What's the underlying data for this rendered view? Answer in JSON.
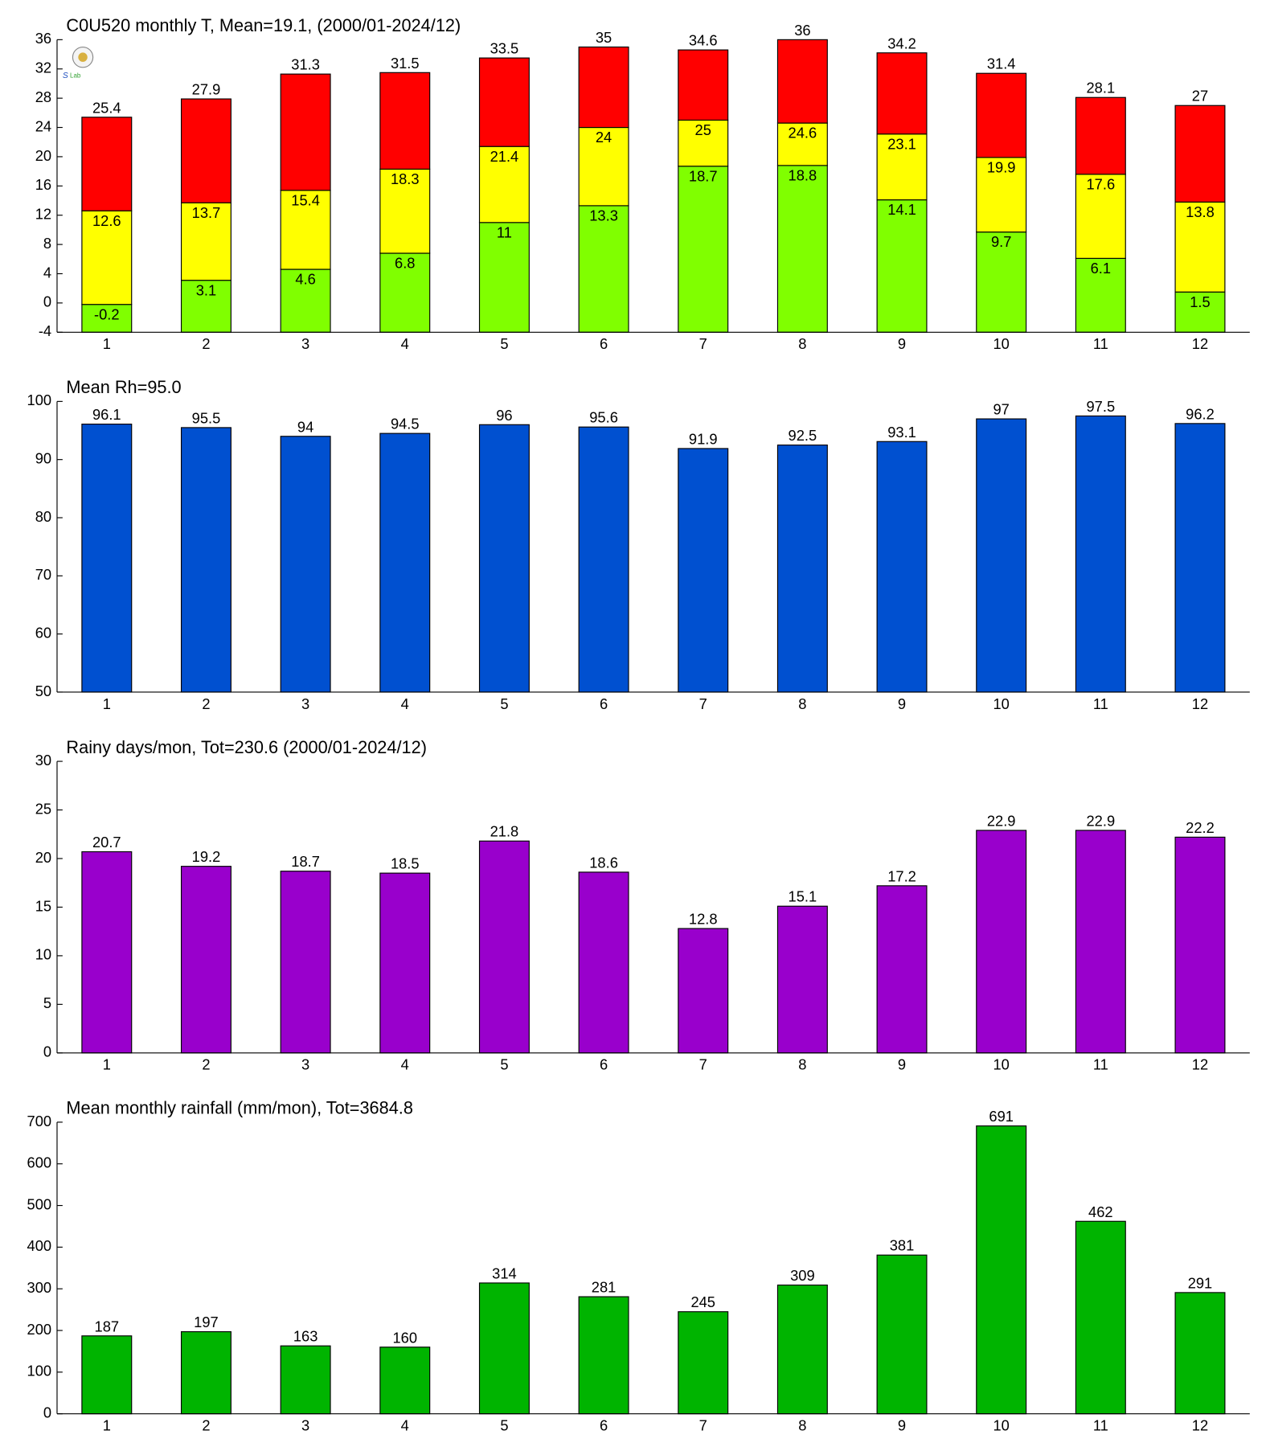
{
  "chart_data": [
    {
      "type": "floating_bar",
      "title": "C0U520 monthly T, Mean=19.1, (2000/01-2024/12)",
      "categories": [
        "1",
        "2",
        "3",
        "4",
        "5",
        "6",
        "7",
        "8",
        "9",
        "10",
        "11",
        "12"
      ],
      "series": [
        {
          "color": "#80ff00",
          "values": [
            -0.2,
            3.1,
            4.6,
            6.8,
            11,
            13.3,
            18.7,
            18.8,
            14.1,
            9.7,
            6.1,
            1.5
          ]
        },
        {
          "color": "#ffff00",
          "values": [
            12.6,
            13.7,
            15.4,
            18.3,
            21.4,
            24,
            25,
            24.6,
            23.1,
            19.9,
            17.6,
            13.8
          ]
        },
        {
          "color": "#ff0000",
          "values": [
            25.4,
            27.9,
            31.3,
            31.5,
            33.5,
            35,
            34.6,
            36,
            34.2,
            31.4,
            28.1,
            27
          ]
        }
      ],
      "ylim": [
        -4,
        36
      ],
      "yticks": [
        -4,
        0,
        4,
        8,
        12,
        16,
        20,
        24,
        28,
        32,
        36
      ]
    },
    {
      "type": "bar",
      "title": "Mean Rh=95.0",
      "categories": [
        "1",
        "2",
        "3",
        "4",
        "5",
        "6",
        "7",
        "8",
        "9",
        "10",
        "11",
        "12"
      ],
      "values": [
        96.1,
        95.5,
        94,
        94.5,
        96,
        95.6,
        91.9,
        92.5,
        93.1,
        97,
        97.5,
        96.2
      ],
      "color": "#0050d0",
      "ylim": [
        50,
        100
      ],
      "yticks": [
        50,
        60,
        70,
        80,
        90,
        100
      ]
    },
    {
      "type": "bar",
      "title": "Rainy days/mon, Tot=230.6 (2000/01-2024/12)",
      "categories": [
        "1",
        "2",
        "3",
        "4",
        "5",
        "6",
        "7",
        "8",
        "9",
        "10",
        "11",
        "12"
      ],
      "values": [
        20.7,
        19.2,
        18.7,
        18.5,
        21.8,
        18.6,
        12.8,
        15.1,
        17.2,
        22.9,
        22.9,
        22.2
      ],
      "color": "#9900cc",
      "ylim": [
        0,
        30
      ],
      "yticks": [
        0,
        5,
        10,
        15,
        20,
        25,
        30
      ]
    },
    {
      "type": "bar",
      "title": "Mean monthly rainfall (mm/mon), Tot=3684.8",
      "categories": [
        "1",
        "2",
        "3",
        "4",
        "5",
        "6",
        "7",
        "8",
        "9",
        "10",
        "11",
        "12"
      ],
      "values": [
        187,
        197,
        163,
        160,
        314,
        281,
        245,
        309,
        381,
        691,
        462,
        291
      ],
      "color": "#00b400",
      "ylim": [
        0,
        700
      ],
      "yticks": [
        0,
        100,
        200,
        300,
        400,
        500,
        600,
        700
      ]
    }
  ]
}
